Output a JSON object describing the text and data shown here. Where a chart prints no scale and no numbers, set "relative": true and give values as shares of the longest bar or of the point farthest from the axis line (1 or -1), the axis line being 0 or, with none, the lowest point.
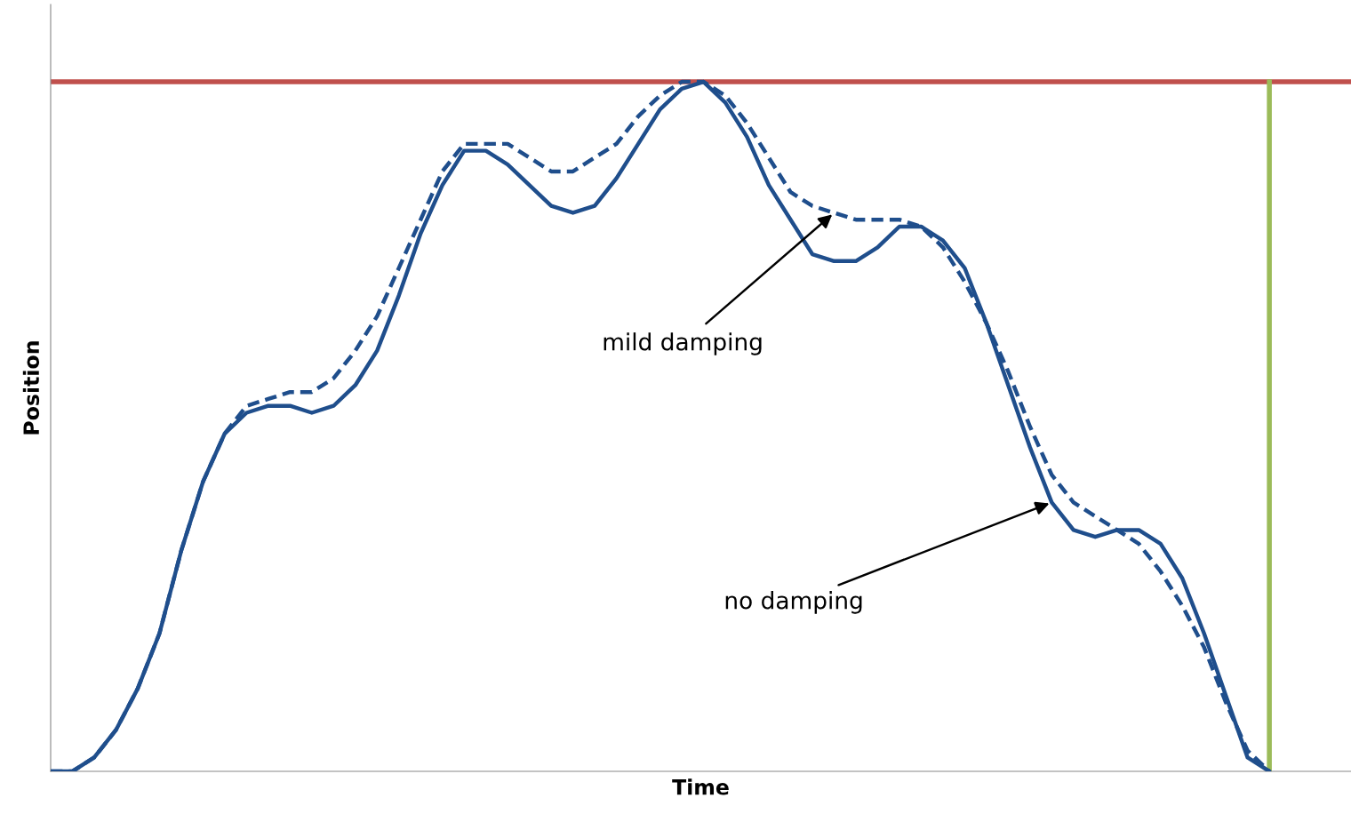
{
  "chart_data": {
    "type": "line",
    "relative": true,
    "xlabel": "Time",
    "ylabel": "Position",
    "legend": false,
    "annotations": [
      "no damping",
      "mild damping"
    ],
    "categories": [
      null,
      null,
      null,
      null,
      null,
      null,
      null,
      null,
      null,
      null,
      null,
      null,
      null,
      null,
      null,
      null,
      null,
      null,
      null,
      null,
      null,
      null,
      null,
      null,
      null,
      null,
      null,
      null,
      null,
      null,
      null,
      null,
      null,
      null,
      null,
      null,
      null,
      null,
      null,
      null,
      null,
      null,
      null,
      null,
      null,
      null,
      null,
      null,
      null,
      null,
      null,
      null,
      null,
      null,
      null,
      null,
      null
    ],
    "series": [
      {
        "color": "#1f4e8c",
        "line_style": "solid",
        "values": [
          0,
          0.0,
          0.02,
          0.06,
          0.12,
          0.2,
          0.32,
          0.42,
          0.49,
          0.52,
          0.53,
          0.53,
          0.52,
          0.53,
          0.56,
          0.61,
          0.69,
          0.78,
          0.85,
          0.9,
          0.9,
          0.88,
          0.85,
          0.82,
          0.81,
          0.82,
          0.86,
          0.91,
          0.96,
          0.99,
          1.0,
          0.97,
          0.92,
          0.85,
          0.8,
          0.75,
          0.74,
          0.74,
          0.76,
          0.79,
          0.79,
          0.77,
          0.73,
          0.65,
          0.56,
          0.47,
          0.39,
          0.35,
          0.34,
          0.35,
          0.35,
          0.33,
          0.28,
          0.2,
          0.11,
          0.02,
          0
        ]
      },
      {
        "color": "#1f4e8c",
        "line_style": "dashed",
        "values": [
          0,
          0.0,
          0.02,
          0.06,
          0.12,
          0.2,
          0.32,
          0.42,
          0.49,
          0.53,
          0.54,
          0.55,
          0.55,
          0.57,
          0.61,
          0.66,
          0.73,
          0.8,
          0.87,
          0.91,
          0.91,
          0.91,
          0.89,
          0.87,
          0.87,
          0.89,
          0.91,
          0.95,
          0.98,
          1.0,
          1.0,
          0.98,
          0.94,
          0.89,
          0.84,
          0.82,
          0.81,
          0.8,
          0.8,
          0.8,
          0.79,
          0.76,
          0.71,
          0.65,
          0.58,
          0.5,
          0.43,
          0.39,
          0.37,
          0.35,
          0.33,
          0.29,
          0.24,
          0.18,
          0.1,
          0.03,
          0
        ]
      }
    ],
    "ref_lines": [
      {
        "axis": "y",
        "value": 1,
        "color": "#c0504d"
      }
    ]
  }
}
